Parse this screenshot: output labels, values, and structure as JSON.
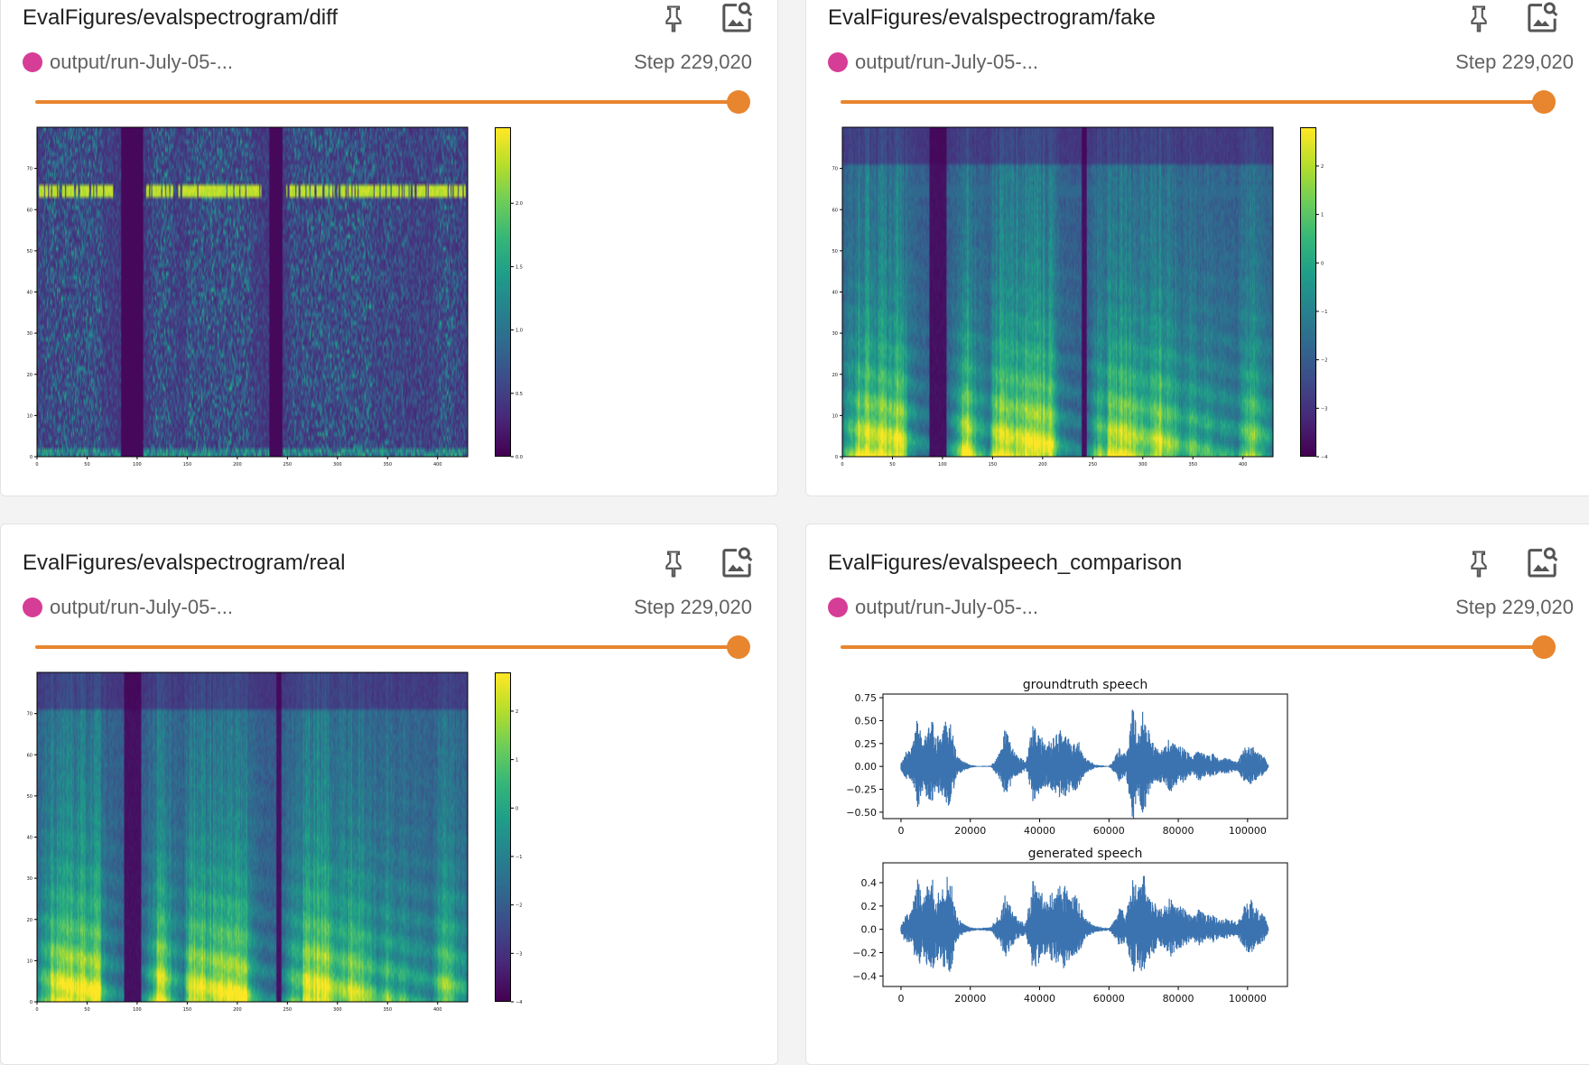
{
  "colors": {
    "run_dot": "#d63d96",
    "slider": "#e8852f",
    "waveform": "#3b73b0"
  },
  "icons": {
    "pin": "pin-icon",
    "image_search": "image-search-icon"
  },
  "cards": [
    {
      "title": "EvalFigures/evalspectrogram/diff",
      "run": "output/run-July-05-...",
      "step": "Step 229,020",
      "slider_fraction": 1.0
    },
    {
      "title": "EvalFigures/evalspectrogram/fake",
      "run": "output/run-July-05-...",
      "step": "Step 229,020",
      "slider_fraction": 1.0
    },
    {
      "title": "EvalFigures/evalspectrogram/real",
      "run": "output/run-July-05-...",
      "step": "Step 229,020",
      "slider_fraction": 1.0
    },
    {
      "title": "EvalFigures/evalspeech_comparison",
      "run": "output/run-July-05-...",
      "step": "Step 229,020",
      "slider_fraction": 1.0
    }
  ],
  "chart_data": [
    {
      "type": "heatmap",
      "name": "diff",
      "x_ticks": [
        "0",
        "50",
        "100",
        "150",
        "200",
        "250",
        "300",
        "350",
        "400"
      ],
      "y_ticks": [
        "0",
        "10",
        "20",
        "30",
        "40",
        "50",
        "60",
        "70"
      ],
      "colorbar_ticks": [
        "0.0",
        "0.5",
        "1.0",
        "1.5",
        "2.0"
      ],
      "colorbar_range": [
        0,
        2.6
      ],
      "colormap": "viridis"
    },
    {
      "type": "heatmap",
      "name": "fake",
      "x_ticks": [
        "0",
        "50",
        "100",
        "150",
        "200",
        "250",
        "300",
        "350",
        "400"
      ],
      "y_ticks": [
        "0",
        "10",
        "20",
        "30",
        "40",
        "50",
        "60",
        "70"
      ],
      "colorbar_ticks": [
        "−4",
        "−3",
        "−2",
        "−1",
        "0",
        "1",
        "2"
      ],
      "colorbar_range": [
        -4,
        2.8
      ],
      "colormap": "viridis"
    },
    {
      "type": "heatmap",
      "name": "real",
      "x_ticks": [
        "0",
        "50",
        "100",
        "150",
        "200",
        "250",
        "300",
        "350",
        "400"
      ],
      "y_ticks": [
        "0",
        "10",
        "20",
        "30",
        "40",
        "50",
        "60",
        "70"
      ],
      "colorbar_ticks": [
        "−4",
        "−3",
        "−2",
        "−1",
        "0",
        "1",
        "2"
      ],
      "colorbar_range": [
        -4,
        2.8
      ],
      "colormap": "viridis"
    },
    {
      "type": "line",
      "title": "groundtruth speech",
      "x_ticks": [
        "0",
        "20000",
        "40000",
        "60000",
        "80000",
        "100000"
      ],
      "y_ticks": [
        "0.75",
        "0.50",
        "0.25",
        "0.00",
        "−0.25",
        "−0.50"
      ],
      "xlim": [
        -5200,
        111500
      ],
      "ylim": [
        -0.57,
        0.79
      ],
      "envelope_x_thousands": [
        0,
        1,
        3,
        5,
        6,
        9,
        10,
        12,
        14,
        16,
        18,
        20,
        22,
        26,
        29,
        30,
        33,
        36,
        38,
        40,
        42,
        47,
        49,
        51,
        53,
        56,
        60,
        61,
        63,
        65,
        67,
        68,
        70,
        72,
        74,
        76,
        78,
        79,
        82,
        84,
        86,
        88,
        90,
        92,
        94,
        97,
        99,
        101,
        103,
        105,
        106
      ],
      "envelope": [
        0.05,
        0.15,
        0.2,
        0.58,
        0.3,
        0.5,
        0.35,
        0.4,
        0.62,
        0.12,
        0.06,
        0.02,
        0.005,
        0.01,
        0.2,
        0.42,
        0.15,
        0.05,
        0.45,
        0.35,
        0.25,
        0.45,
        0.3,
        0.32,
        0.1,
        0.02,
        0.005,
        0.05,
        0.2,
        0.15,
        0.73,
        0.4,
        0.65,
        0.3,
        0.2,
        0.22,
        0.35,
        0.25,
        0.2,
        0.1,
        0.2,
        0.12,
        0.15,
        0.08,
        0.1,
        0.05,
        0.2,
        0.25,
        0.15,
        0.1,
        0.02
      ]
    },
    {
      "type": "line",
      "title": "generated speech",
      "x_ticks": [
        "0",
        "20000",
        "40000",
        "60000",
        "80000",
        "100000"
      ],
      "y_ticks": [
        "0.4",
        "0.2",
        "0.0",
        "−0.2",
        "−0.4"
      ],
      "xlim": [
        -5200,
        111500
      ],
      "ylim": [
        -0.49,
        0.57
      ],
      "envelope_x_thousands": [
        0,
        1,
        3,
        5,
        6,
        9,
        10,
        12,
        14,
        16,
        18,
        20,
        22,
        26,
        29,
        30,
        33,
        36,
        38,
        40,
        42,
        47,
        49,
        51,
        53,
        56,
        60,
        61,
        63,
        65,
        67,
        68,
        70,
        72,
        74,
        76,
        78,
        79,
        82,
        84,
        86,
        88,
        90,
        92,
        94,
        97,
        99,
        101,
        103,
        105,
        106
      ],
      "envelope": [
        0.04,
        0.12,
        0.15,
        0.46,
        0.25,
        0.48,
        0.3,
        0.36,
        0.5,
        0.12,
        0.05,
        0.02,
        0.01,
        0.02,
        0.18,
        0.3,
        0.12,
        0.05,
        0.42,
        0.33,
        0.28,
        0.4,
        0.28,
        0.3,
        0.1,
        0.03,
        0.01,
        0.05,
        0.18,
        0.15,
        0.45,
        0.35,
        0.52,
        0.3,
        0.2,
        0.2,
        0.3,
        0.22,
        0.18,
        0.1,
        0.18,
        0.12,
        0.14,
        0.08,
        0.1,
        0.06,
        0.2,
        0.26,
        0.17,
        0.12,
        0.02
      ]
    }
  ]
}
